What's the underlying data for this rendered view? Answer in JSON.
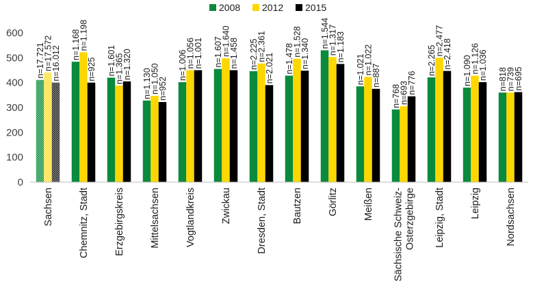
{
  "chart_data": {
    "type": "bar",
    "title": "",
    "xlabel": "",
    "ylabel": "",
    "ylim": [
      0,
      600
    ],
    "yticks": [
      0,
      100,
      200,
      300,
      400,
      500,
      600
    ],
    "grid": false,
    "legend_position": "top-center",
    "categories": [
      "Sachsen",
      "Chemnitz, Stadt",
      "Erzgebirgskreis",
      "Mittelsachsen",
      "Vogtlandkreis",
      "Zwickau",
      "Dresden, Stadt",
      "Bautzen",
      "Görlitz",
      "Meißen",
      "Sächsische Schweiz-\nOsterzgebirge",
      "Leipzig, Stadt",
      "Leipzig",
      "Nordsachsen"
    ],
    "series": [
      {
        "name": "2008",
        "color": "#0a8a3c",
        "values": [
          411,
          484,
          420,
          328,
          402,
          455,
          446,
          428,
          530,
          385,
          292,
          421,
          380,
          360
        ],
        "n_labels": [
          "n=17.721",
          "n=1.168",
          "n=1.601",
          "n=1.130",
          "n=1.006",
          "n=1.607",
          "n=2.225",
          "n=1.478",
          "n=1.544",
          "n=1.021",
          "n=768",
          "n=2.265",
          "n=1.090",
          "n=818"
        ]
      },
      {
        "name": "2012",
        "color": "#ffd700",
        "values": [
          440,
          522,
          388,
          347,
          450,
          498,
          477,
          496,
          503,
          423,
          305,
          500,
          428,
          360
        ],
        "n_labels": [
          "n=17.572",
          "n=1.198",
          "n=1.365",
          "n=1.050",
          "n=1.056",
          "n=1.640",
          "n=2.361",
          "n=1.528",
          "n=1.317",
          "n=1.022",
          "n=693",
          "n=2.477",
          "n=1.126",
          "n=739"
        ]
      },
      {
        "name": "2015",
        "color": "#000000",
        "values": [
          400,
          400,
          405,
          322,
          450,
          450,
          390,
          448,
          475,
          375,
          345,
          447,
          402,
          362
        ],
        "n_labels": [
          "n=16.012",
          "n=925",
          "n=1.320",
          "n=952",
          "n=1.001",
          "n=1.458",
          "n=2.021",
          "n=1.340",
          "n=1.183",
          "n=887",
          "n=776",
          "n=2.418",
          "n=1.036",
          "n=695"
        ]
      }
    ],
    "hatched_categories": [
      "Sachsen"
    ]
  }
}
